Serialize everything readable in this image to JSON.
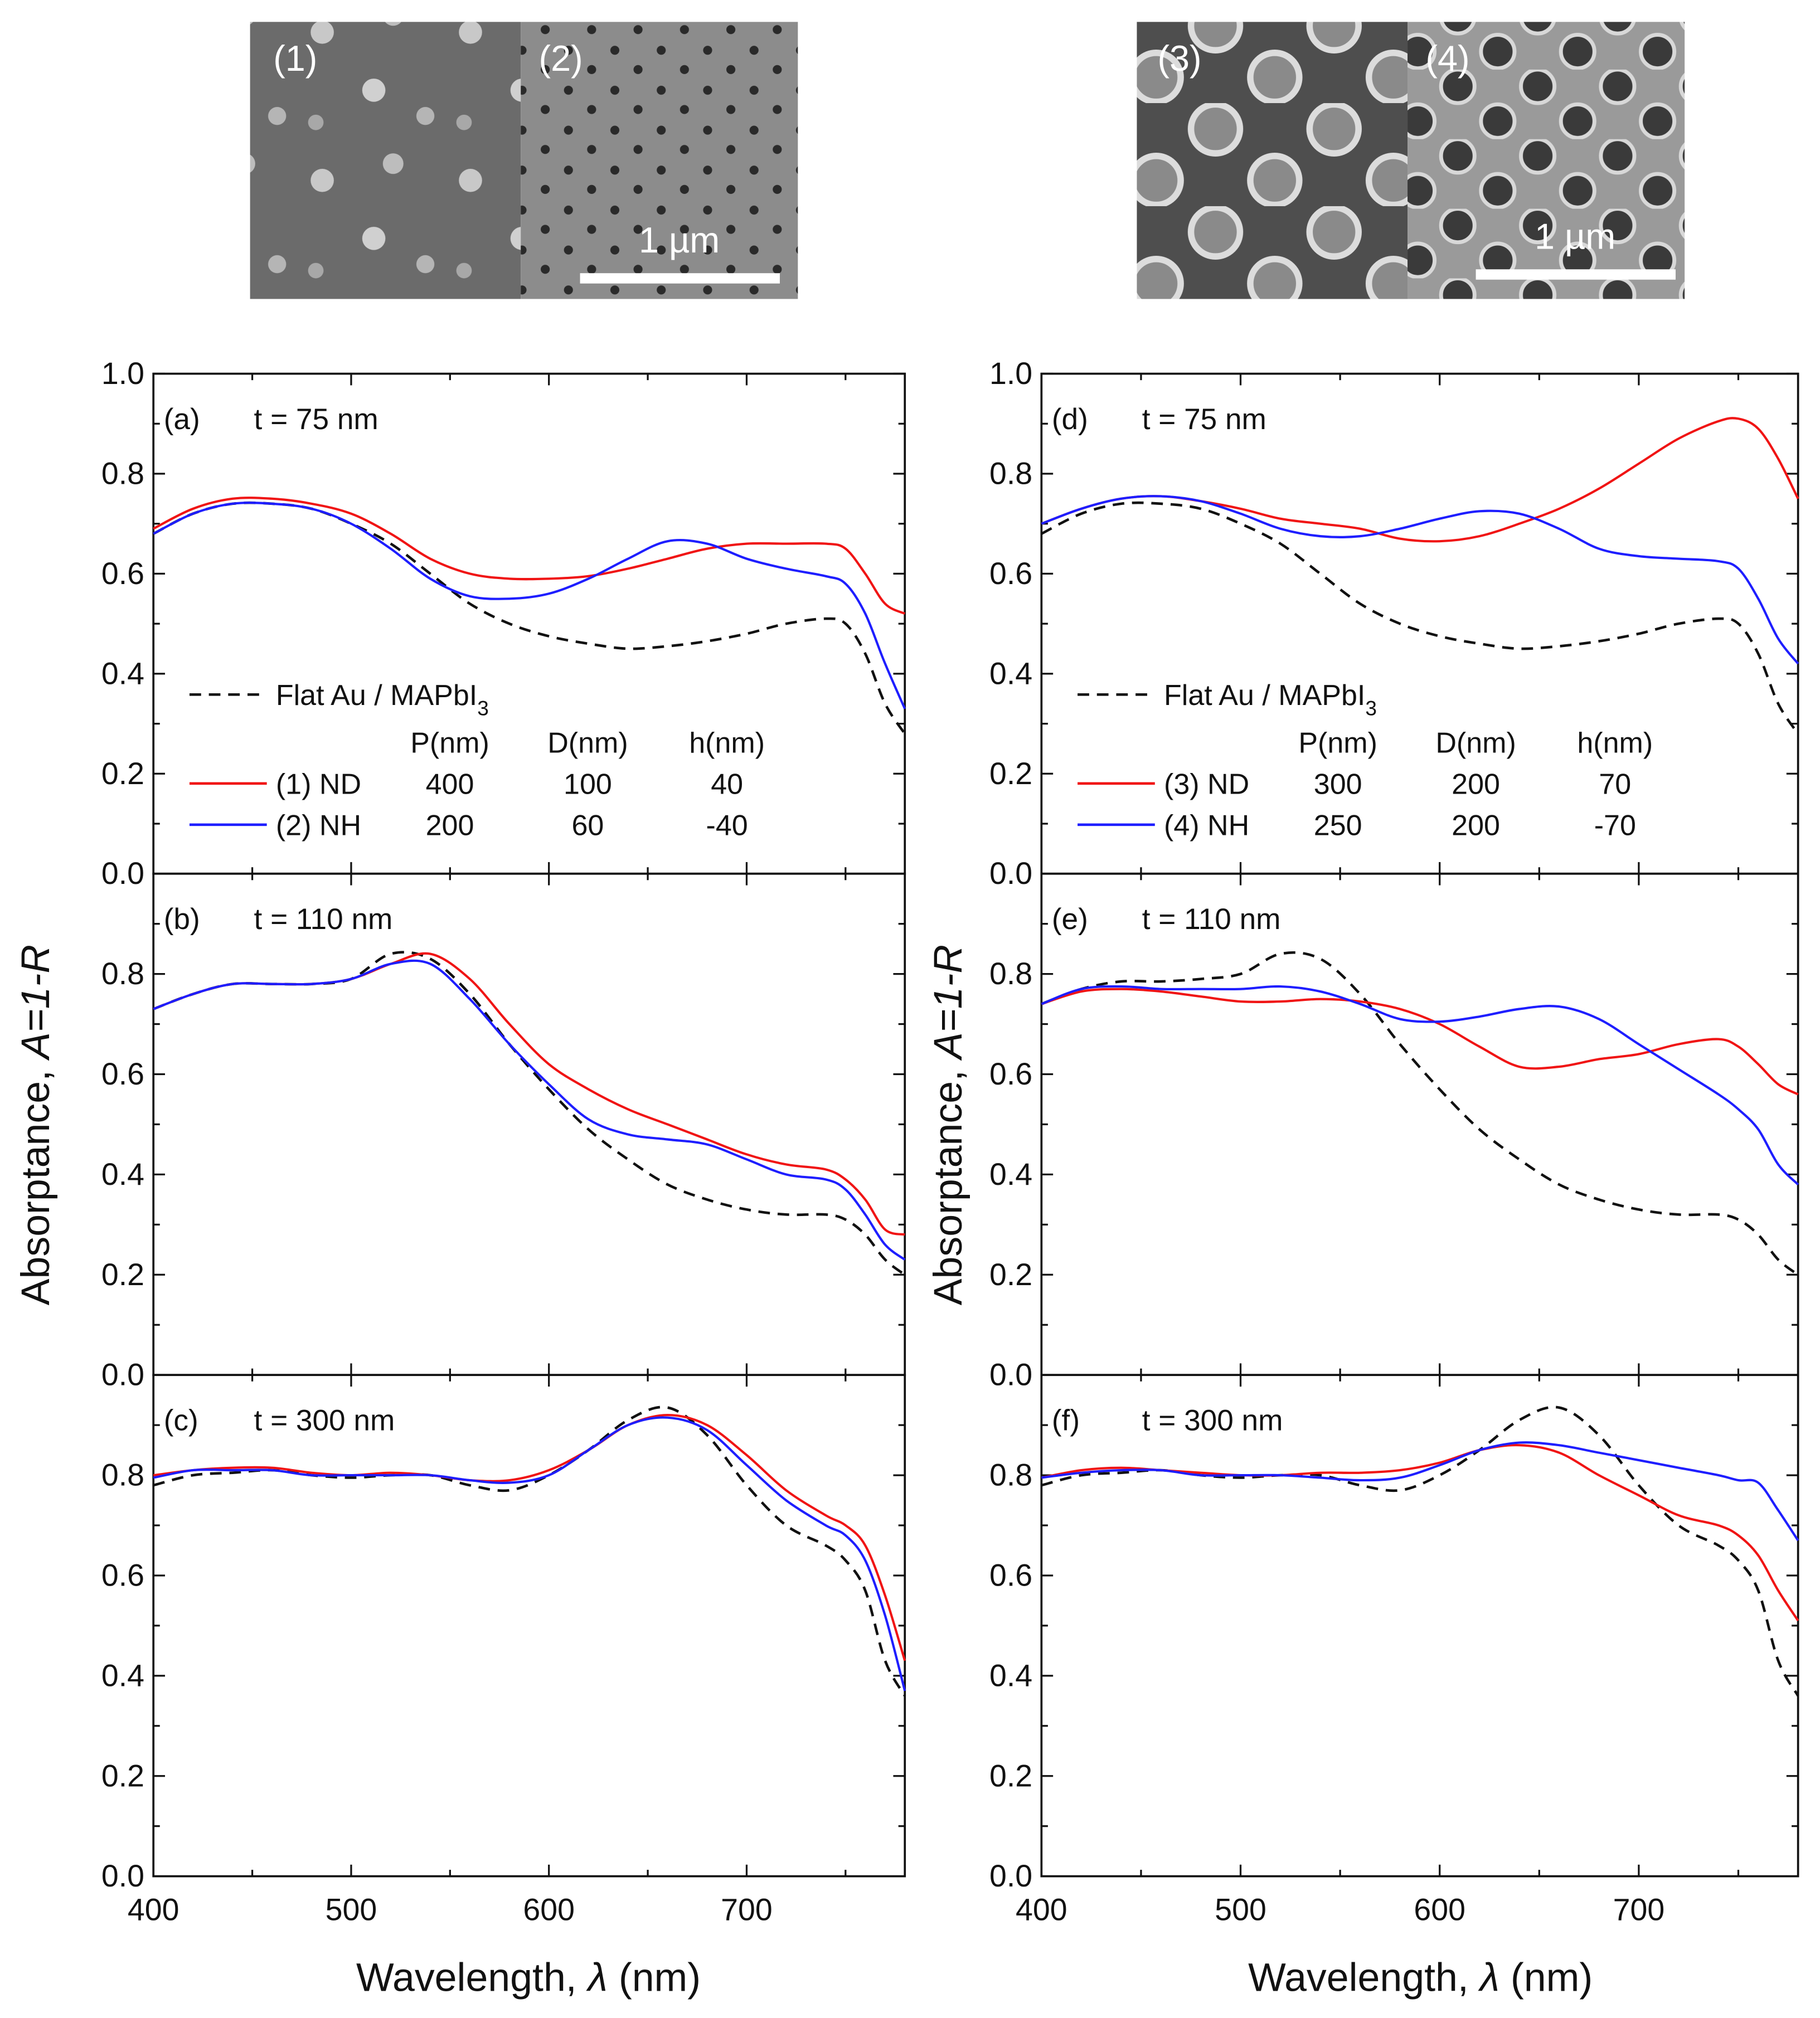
{
  "sem": {
    "images": [
      {
        "label": "(1)"
      },
      {
        "label": "(2)"
      },
      {
        "label": "(3)"
      },
      {
        "label": "(4)"
      }
    ],
    "scale_bar_left": "1 µm",
    "scale_bar_right": "1 µm"
  },
  "axes": {
    "ylabel_prefix": "Absorptance, ",
    "ylabel_italic": "A=1-R",
    "xlabel_prefix": "Wavelength, ",
    "xlabel_italic": "λ",
    "xlabel_suffix": " (nm)"
  },
  "colors": {
    "flat": "#111111",
    "nd": "#f01414",
    "nh": "#1e1eff"
  },
  "legend_left": {
    "flat_label": "Flat Au / MAPbI",
    "flat_sub": "3",
    "headers": [
      "P(nm)",
      "D(nm)",
      "h(nm)"
    ],
    "rows": [
      {
        "name": "(1) ND",
        "P": "400",
        "D": "100",
        "h": "40"
      },
      {
        "name": "(2) NH",
        "P": "200",
        "D": "60",
        "h": "-40"
      }
    ]
  },
  "legend_right": {
    "flat_label": "Flat Au / MAPbI",
    "flat_sub": "3",
    "headers": [
      "P(nm)",
      "D(nm)",
      "h(nm)"
    ],
    "rows": [
      {
        "name": "(3) ND",
        "P": "300",
        "D": "200",
        "h": "70"
      },
      {
        "name": "(4) NH",
        "P": "250",
        "D": "200",
        "h": "-70"
      }
    ]
  },
  "chart_data": [
    {
      "type": "line",
      "panel": "(a)",
      "label": "t = 75 nm",
      "xlim": [
        400,
        780
      ],
      "ylim": [
        0,
        1
      ],
      "xticks": [
        "400",
        "500",
        "600",
        "700"
      ],
      "yticks": [
        "0.0",
        "0.2",
        "0.4",
        "0.6",
        "0.8",
        "1.0"
      ],
      "x": [
        400,
        420,
        440,
        460,
        480,
        500,
        520,
        540,
        560,
        580,
        600,
        620,
        640,
        660,
        680,
        700,
        720,
        740,
        750,
        760,
        770,
        780
      ],
      "series": [
        {
          "name": "Flat Au / MAPbI3",
          "style": "dashed",
          "values": [
            0.68,
            0.72,
            0.74,
            0.74,
            0.73,
            0.7,
            0.66,
            0.6,
            0.54,
            0.5,
            0.475,
            0.46,
            0.45,
            0.455,
            0.465,
            0.48,
            0.5,
            0.51,
            0.5,
            0.44,
            0.34,
            0.28
          ]
        },
        {
          "name": "(1) ND",
          "style": "red",
          "values": [
            0.69,
            0.73,
            0.75,
            0.75,
            0.74,
            0.72,
            0.68,
            0.63,
            0.6,
            0.59,
            0.59,
            0.595,
            0.61,
            0.63,
            0.65,
            0.66,
            0.66,
            0.66,
            0.65,
            0.6,
            0.54,
            0.52
          ]
        },
        {
          "name": "(2) NH",
          "style": "blue",
          "values": [
            0.68,
            0.72,
            0.74,
            0.74,
            0.73,
            0.7,
            0.65,
            0.59,
            0.555,
            0.55,
            0.56,
            0.59,
            0.63,
            0.665,
            0.66,
            0.63,
            0.61,
            0.595,
            0.58,
            0.52,
            0.42,
            0.33
          ]
        }
      ]
    },
    {
      "type": "line",
      "panel": "(b)",
      "label": "t = 110 nm",
      "xlim": [
        400,
        780
      ],
      "ylim": [
        0,
        1
      ],
      "xticks": [
        "400",
        "500",
        "600",
        "700"
      ],
      "yticks": [
        "0.0",
        "0.2",
        "0.4",
        "0.6",
        "0.8"
      ],
      "x": [
        400,
        420,
        440,
        460,
        480,
        500,
        520,
        540,
        560,
        580,
        600,
        620,
        640,
        660,
        680,
        700,
        720,
        740,
        750,
        760,
        770,
        780
      ],
      "series": [
        {
          "name": "Flat Au / MAPbI3",
          "style": "dashed",
          "values": [
            0.73,
            0.76,
            0.78,
            0.78,
            0.78,
            0.79,
            0.84,
            0.83,
            0.76,
            0.66,
            0.57,
            0.49,
            0.43,
            0.38,
            0.35,
            0.33,
            0.32,
            0.32,
            0.31,
            0.28,
            0.23,
            0.2
          ]
        },
        {
          "name": "(1) ND",
          "style": "red",
          "values": [
            0.73,
            0.76,
            0.78,
            0.78,
            0.78,
            0.79,
            0.82,
            0.84,
            0.79,
            0.7,
            0.62,
            0.57,
            0.53,
            0.5,
            0.47,
            0.44,
            0.42,
            0.41,
            0.39,
            0.35,
            0.29,
            0.28
          ]
        },
        {
          "name": "(2) NH",
          "style": "blue",
          "values": [
            0.73,
            0.76,
            0.78,
            0.78,
            0.78,
            0.79,
            0.82,
            0.82,
            0.75,
            0.66,
            0.58,
            0.51,
            0.48,
            0.47,
            0.46,
            0.43,
            0.4,
            0.39,
            0.37,
            0.32,
            0.26,
            0.23
          ]
        }
      ]
    },
    {
      "type": "line",
      "panel": "(c)",
      "label": "t = 300 nm",
      "xlim": [
        400,
        780
      ],
      "ylim": [
        0,
        1
      ],
      "xticks": [
        "400",
        "500",
        "600",
        "700"
      ],
      "yticks": [
        "0.0",
        "0.2",
        "0.4",
        "0.6",
        "0.8"
      ],
      "x": [
        400,
        420,
        440,
        460,
        480,
        500,
        520,
        540,
        560,
        580,
        600,
        620,
        640,
        660,
        680,
        700,
        720,
        740,
        750,
        760,
        770,
        780
      ],
      "series": [
        {
          "name": "Flat Au / MAPbI3",
          "style": "dashed",
          "values": [
            0.78,
            0.8,
            0.805,
            0.81,
            0.8,
            0.795,
            0.8,
            0.8,
            0.78,
            0.77,
            0.8,
            0.85,
            0.91,
            0.935,
            0.88,
            0.78,
            0.7,
            0.66,
            0.63,
            0.57,
            0.43,
            0.36
          ]
        },
        {
          "name": "(1) ND",
          "style": "red",
          "values": [
            0.8,
            0.81,
            0.815,
            0.815,
            0.805,
            0.8,
            0.805,
            0.8,
            0.79,
            0.79,
            0.81,
            0.85,
            0.9,
            0.92,
            0.9,
            0.84,
            0.77,
            0.72,
            0.7,
            0.66,
            0.56,
            0.43
          ]
        },
        {
          "name": "(2) NH",
          "style": "blue",
          "values": [
            0.795,
            0.81,
            0.81,
            0.81,
            0.8,
            0.8,
            0.8,
            0.8,
            0.79,
            0.785,
            0.8,
            0.85,
            0.9,
            0.915,
            0.89,
            0.82,
            0.75,
            0.7,
            0.68,
            0.63,
            0.52,
            0.37
          ]
        }
      ]
    },
    {
      "type": "line",
      "panel": "(d)",
      "label": "t = 75 nm",
      "xlim": [
        400,
        780
      ],
      "ylim": [
        0,
        1
      ],
      "xticks": [
        "400",
        "500",
        "600",
        "700"
      ],
      "yticks": [
        "0.0",
        "0.2",
        "0.4",
        "0.6",
        "0.8",
        "1.0"
      ],
      "x": [
        400,
        420,
        440,
        460,
        480,
        500,
        520,
        540,
        560,
        580,
        600,
        620,
        640,
        660,
        680,
        700,
        720,
        740,
        750,
        760,
        770,
        780
      ],
      "series": [
        {
          "name": "Flat Au / MAPbI3",
          "style": "dashed",
          "values": [
            0.68,
            0.72,
            0.74,
            0.74,
            0.73,
            0.7,
            0.66,
            0.6,
            0.54,
            0.5,
            0.475,
            0.46,
            0.45,
            0.455,
            0.465,
            0.48,
            0.5,
            0.51,
            0.5,
            0.44,
            0.34,
            0.28
          ]
        },
        {
          "name": "(3) ND",
          "style": "red",
          "values": [
            0.7,
            0.73,
            0.75,
            0.755,
            0.745,
            0.73,
            0.71,
            0.7,
            0.69,
            0.67,
            0.665,
            0.675,
            0.7,
            0.73,
            0.77,
            0.82,
            0.87,
            0.905,
            0.91,
            0.89,
            0.83,
            0.75
          ]
        },
        {
          "name": "(4) NH",
          "style": "blue",
          "values": [
            0.7,
            0.73,
            0.75,
            0.755,
            0.745,
            0.72,
            0.69,
            0.675,
            0.675,
            0.69,
            0.71,
            0.725,
            0.72,
            0.69,
            0.65,
            0.635,
            0.63,
            0.625,
            0.61,
            0.55,
            0.47,
            0.42
          ]
        }
      ]
    },
    {
      "type": "line",
      "panel": "(e)",
      "label": "t = 110 nm",
      "xlim": [
        400,
        780
      ],
      "ylim": [
        0,
        1
      ],
      "xticks": [
        "400",
        "500",
        "600",
        "700"
      ],
      "yticks": [
        "0.0",
        "0.2",
        "0.4",
        "0.6",
        "0.8"
      ],
      "x": [
        400,
        420,
        440,
        460,
        480,
        500,
        520,
        540,
        560,
        580,
        600,
        620,
        640,
        660,
        680,
        700,
        720,
        740,
        750,
        760,
        770,
        780
      ],
      "series": [
        {
          "name": "Flat Au / MAPbI3",
          "style": "dashed",
          "values": [
            0.74,
            0.77,
            0.785,
            0.785,
            0.79,
            0.8,
            0.84,
            0.83,
            0.76,
            0.66,
            0.57,
            0.49,
            0.43,
            0.38,
            0.35,
            0.33,
            0.32,
            0.32,
            0.31,
            0.28,
            0.23,
            0.2
          ]
        },
        {
          "name": "(3) ND",
          "style": "red",
          "values": [
            0.74,
            0.765,
            0.77,
            0.765,
            0.755,
            0.745,
            0.745,
            0.75,
            0.745,
            0.73,
            0.7,
            0.655,
            0.615,
            0.615,
            0.63,
            0.64,
            0.66,
            0.67,
            0.655,
            0.62,
            0.58,
            0.56
          ]
        },
        {
          "name": "(4) NH",
          "style": "blue",
          "values": [
            0.74,
            0.77,
            0.775,
            0.77,
            0.77,
            0.77,
            0.775,
            0.765,
            0.74,
            0.71,
            0.705,
            0.715,
            0.73,
            0.735,
            0.71,
            0.66,
            0.61,
            0.56,
            0.53,
            0.49,
            0.42,
            0.38
          ]
        }
      ]
    },
    {
      "type": "line",
      "panel": "(f)",
      "label": "t = 300 nm",
      "xlim": [
        400,
        780
      ],
      "ylim": [
        0,
        1
      ],
      "xticks": [
        "400",
        "500",
        "600",
        "700"
      ],
      "yticks": [
        "0.0",
        "0.2",
        "0.4",
        "0.6",
        "0.8"
      ],
      "x": [
        400,
        420,
        440,
        460,
        480,
        500,
        520,
        540,
        560,
        580,
        600,
        620,
        640,
        660,
        680,
        700,
        720,
        740,
        750,
        760,
        770,
        780
      ],
      "series": [
        {
          "name": "Flat Au / MAPbI3",
          "style": "dashed",
          "values": [
            0.78,
            0.8,
            0.805,
            0.81,
            0.8,
            0.795,
            0.8,
            0.8,
            0.78,
            0.77,
            0.8,
            0.85,
            0.91,
            0.935,
            0.88,
            0.78,
            0.7,
            0.66,
            0.63,
            0.57,
            0.43,
            0.36
          ]
        },
        {
          "name": "(3) ND",
          "style": "red",
          "values": [
            0.795,
            0.81,
            0.815,
            0.81,
            0.805,
            0.8,
            0.8,
            0.805,
            0.805,
            0.81,
            0.825,
            0.85,
            0.86,
            0.845,
            0.8,
            0.76,
            0.72,
            0.7,
            0.68,
            0.64,
            0.57,
            0.51
          ]
        },
        {
          "name": "(4) NH",
          "style": "blue",
          "values": [
            0.795,
            0.805,
            0.81,
            0.81,
            0.8,
            0.8,
            0.8,
            0.795,
            0.79,
            0.795,
            0.82,
            0.85,
            0.865,
            0.86,
            0.845,
            0.83,
            0.815,
            0.8,
            0.79,
            0.785,
            0.73,
            0.67
          ]
        }
      ]
    }
  ]
}
